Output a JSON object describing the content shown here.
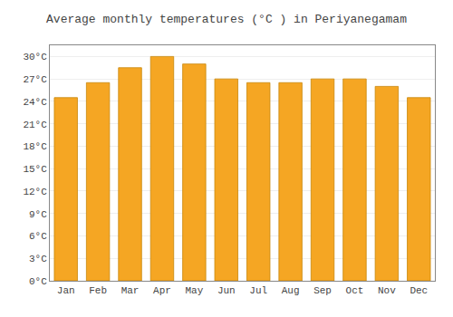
{
  "chart_data": {
    "type": "bar",
    "title": "Average monthly temperatures (°C ) in Periyanegamam",
    "categories": [
      "Jan",
      "Feb",
      "Mar",
      "Apr",
      "May",
      "Jun",
      "Jul",
      "Aug",
      "Sep",
      "Oct",
      "Nov",
      "Dec"
    ],
    "values": [
      24.5,
      26.5,
      28.5,
      30.0,
      29.0,
      27.0,
      26.5,
      26.5,
      27.0,
      27.0,
      26.0,
      24.5
    ],
    "color": "#F5A623",
    "ylim": [
      0,
      31.5
    ],
    "yticks": [
      {
        "value": 0,
        "label": "0°C"
      },
      {
        "value": 3,
        "label": "3°C"
      },
      {
        "value": 6,
        "label": "6°C"
      },
      {
        "value": 9,
        "label": "9°C"
      },
      {
        "value": 12,
        "label": "12°C"
      },
      {
        "value": 15,
        "label": "15°C"
      },
      {
        "value": 18,
        "label": "18°C"
      },
      {
        "value": 21,
        "label": "21°C"
      },
      {
        "value": 24,
        "label": "24°C"
      },
      {
        "value": 27,
        "label": "27°C"
      },
      {
        "value": 30,
        "label": "30°C"
      }
    ],
    "grid": true
  }
}
